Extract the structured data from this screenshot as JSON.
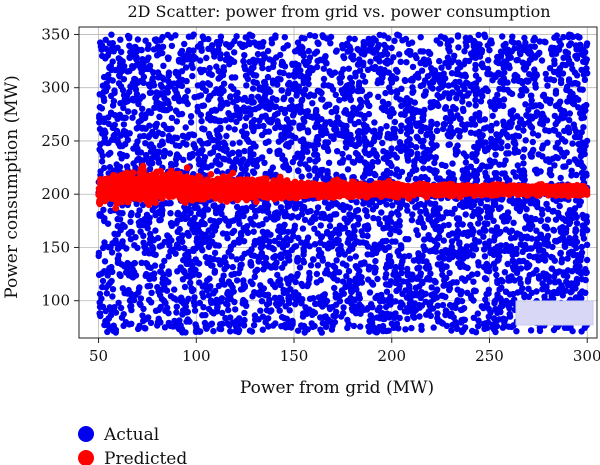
{
  "chart_data": {
    "type": "scatter",
    "title": "2D Scatter: power from grid vs. power consumption",
    "xlabel": "Power from grid (MW)",
    "ylabel": "Power consumption (MW)",
    "xlim": [
      40,
      305
    ],
    "ylim": [
      65,
      357
    ],
    "xticks": [
      50,
      100,
      150,
      200,
      250,
      300
    ],
    "yticks": [
      100,
      150,
      200,
      250,
      300,
      350
    ],
    "grid": true,
    "legend": {
      "placement": "bottom-left, outside plot"
    },
    "series": [
      {
        "name": "Actual",
        "color": "#0000ee",
        "x_range": [
          50,
          300
        ],
        "y_range": [
          70,
          350
        ],
        "distribution": "uniform"
      },
      {
        "name": "Predicted",
        "color": "#ff0000",
        "points": [
          {
            "x": 50,
            "y_low": 183,
            "y_high": 224
          },
          {
            "x": 75,
            "y_low": 182,
            "y_high": 231
          },
          {
            "x": 85,
            "y_low": 184,
            "y_high": 232
          },
          {
            "x": 100,
            "y_low": 186,
            "y_high": 226
          },
          {
            "x": 125,
            "y_low": 189,
            "y_high": 222
          },
          {
            "x": 150,
            "y_low": 191,
            "y_high": 217
          },
          {
            "x": 175,
            "y_low": 193,
            "y_high": 215
          },
          {
            "x": 200,
            "y_low": 194,
            "y_high": 214
          },
          {
            "x": 225,
            "y_low": 195,
            "y_high": 213
          },
          {
            "x": 250,
            "y_low": 196,
            "y_high": 212
          },
          {
            "x": 275,
            "y_low": 196,
            "y_high": 211
          },
          {
            "x": 300,
            "y_low": 196,
            "y_high": 211
          }
        ]
      }
    ]
  }
}
